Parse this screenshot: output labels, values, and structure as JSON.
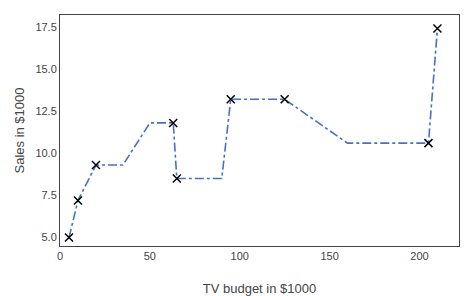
{
  "chart_data": {
    "type": "line",
    "xlabel": "TV budget in $1000",
    "ylabel": "Sales in $1000",
    "series": [
      {
        "type": "line",
        "x": [
          5,
          10,
          20,
          35,
          50,
          63,
          65,
          90,
          95,
          125,
          160,
          205,
          210
        ],
        "values": [
          5.0,
          7.2,
          9.3,
          9.3,
          11.8,
          11.8,
          8.5,
          8.5,
          13.2,
          13.2,
          10.6,
          10.6,
          17.4
        ],
        "color": "#4472C4",
        "line_style": "dashdot"
      },
      {
        "type": "scatter",
        "x": [
          5,
          10,
          20,
          63,
          65,
          95,
          125,
          205,
          210
        ],
        "values": [
          5.0,
          7.2,
          9.3,
          11.8,
          8.5,
          13.2,
          13.2,
          10.6,
          17.4
        ],
        "color": "black",
        "marker": "x"
      }
    ],
    "xlim": [
      0,
      222
    ],
    "ylim": [
      4.5,
      18.2
    ],
    "xticks": [
      0,
      50,
      100,
      150,
      200
    ],
    "yticks": [
      {
        "value": 5.0,
        "label": "5.0"
      },
      7.5,
      {
        "value": 10.0,
        "label": "10.0"
      },
      12.5,
      {
        "value": 15.0,
        "label": "15.0"
      },
      17.5
    ],
    "grid": false
  }
}
